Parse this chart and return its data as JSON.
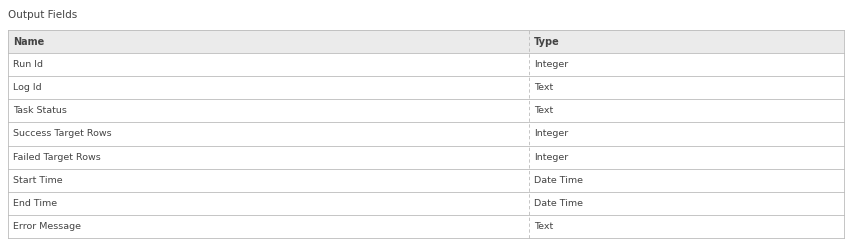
{
  "title": "Output Fields",
  "header": [
    "Name",
    "Type"
  ],
  "rows": [
    [
      "Run Id",
      "Integer"
    ],
    [
      "Log Id",
      "Text"
    ],
    [
      "Task Status",
      "Text"
    ],
    [
      "Success Target Rows",
      "Integer"
    ],
    [
      "Failed Target Rows",
      "Integer"
    ],
    [
      "Start Time",
      "Date Time"
    ],
    [
      "End Time",
      "Date Time"
    ],
    [
      "Error Message",
      "Text"
    ]
  ],
  "col_split": 0.623,
  "header_bg": "#ebebeb",
  "border_color": "#bbbbbb",
  "divider_color": "#bbbbbb",
  "text_color": "#444444",
  "title_color": "#444444",
  "header_font_size": 7.0,
  "row_font_size": 6.8,
  "title_font_size": 7.5,
  "fig_width": 8.52,
  "fig_height": 2.42,
  "dpi": 100
}
